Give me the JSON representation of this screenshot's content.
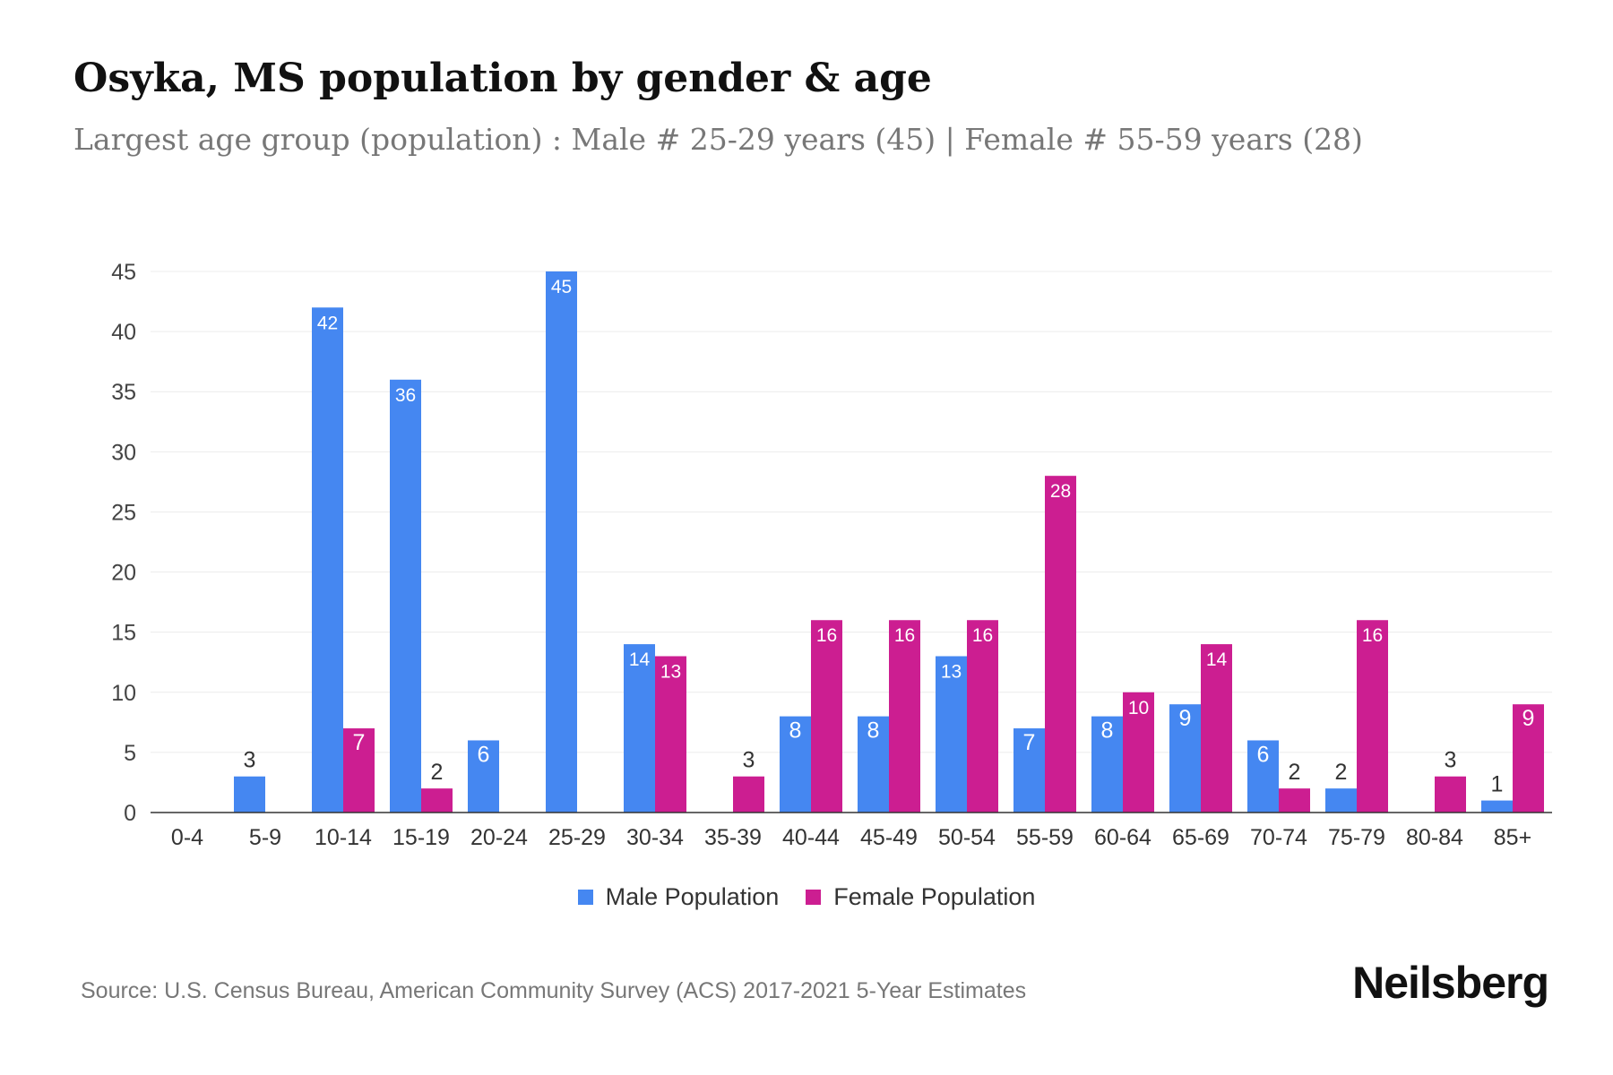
{
  "title": "Osyka, MS population by gender & age",
  "subtitle": "Largest age group (population) : Male # 25-29 years (45) | Female # 55-59 years (28)",
  "source": "Source: U.S. Census Bureau, American Community Survey (ACS) 2017-2021 5-Year Estimates",
  "logo": "Neilsberg",
  "chart_data": {
    "type": "bar",
    "categories": [
      "0-4",
      "5-9",
      "10-14",
      "15-19",
      "20-24",
      "25-29",
      "30-34",
      "35-39",
      "40-44",
      "45-49",
      "50-54",
      "55-59",
      "60-64",
      "65-69",
      "70-74",
      "75-79",
      "80-84",
      "85+"
    ],
    "series": [
      {
        "name": "Male Population",
        "color": "#4587F1",
        "values": [
          0,
          3,
          42,
          36,
          6,
          45,
          14,
          0,
          8,
          8,
          13,
          7,
          8,
          9,
          6,
          2,
          0,
          1
        ]
      },
      {
        "name": "Female Population",
        "color": "#CC1E91",
        "values": [
          0,
          0,
          7,
          2,
          0,
          0,
          13,
          3,
          16,
          16,
          16,
          28,
          10,
          14,
          2,
          16,
          3,
          9
        ]
      }
    ],
    "ylim": [
      0,
      45
    ],
    "yticks": [
      0,
      5,
      10,
      15,
      20,
      25,
      30,
      35,
      40,
      45
    ],
    "grid": true,
    "legend": "bottom",
    "data_labels": true
  }
}
